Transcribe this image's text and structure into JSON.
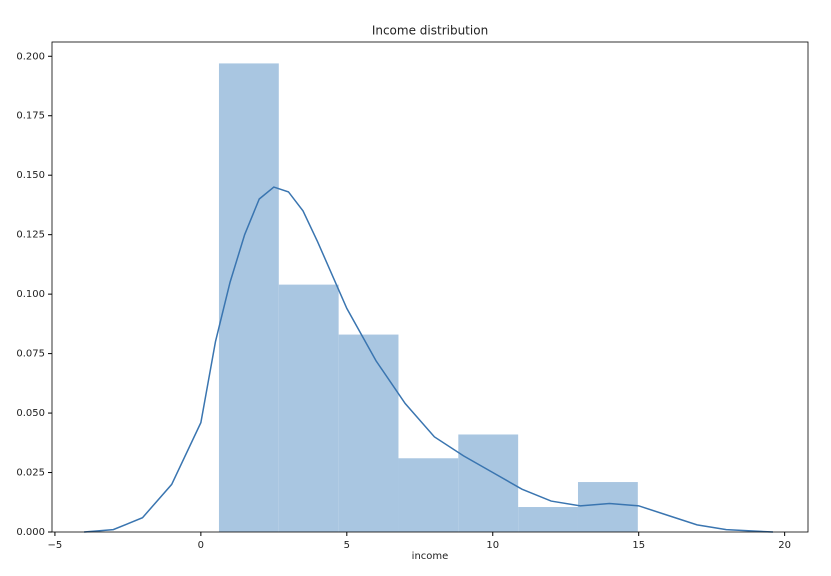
{
  "chart_data": {
    "type": "histogram",
    "title": "Income distribution",
    "x_label": "income",
    "bins": [
      0.62,
      2.67,
      4.72,
      6.77,
      8.82,
      10.87,
      12.92,
      14.97
    ],
    "values": [
      0.197,
      0.104,
      0.083,
      0.031,
      0.041,
      0.0105,
      0.021
    ],
    "color": "#a9c6e1",
    "kde": {
      "color": "#3a75b0",
      "x": [
        -4,
        -3,
        -2,
        -1,
        0,
        0.5,
        1,
        1.5,
        2,
        2.5,
        3,
        3.5,
        4,
        5,
        6,
        7,
        8,
        9,
        10,
        11,
        12,
        13,
        14,
        15,
        16,
        17,
        18,
        19.6
      ],
      "y": [
        0,
        0.001,
        0.006,
        0.02,
        0.046,
        0.08,
        0.105,
        0.125,
        0.14,
        0.145,
        0.143,
        0.135,
        0.122,
        0.094,
        0.072,
        0.054,
        0.04,
        0.032,
        0.025,
        0.018,
        0.013,
        0.011,
        0.012,
        0.011,
        0.007,
        0.003,
        0.001,
        0
      ]
    },
    "xlim": [
      -5.1,
      20.8
    ],
    "ylim": [
      0,
      0.206
    ],
    "xticks": [
      {
        "value": -5,
        "label": "−5"
      },
      0,
      5,
      10,
      15,
      20
    ],
    "yticks": [
      {
        "value": 0,
        "label": "0.000"
      },
      {
        "value": 0.025,
        "label": "0.025"
      },
      {
        "value": 0.05,
        "label": "0.050"
      },
      {
        "value": 0.075,
        "label": "0.075"
      },
      {
        "value": 0.1,
        "label": "0.100"
      },
      {
        "value": 0.125,
        "label": "0.125"
      },
      {
        "value": 0.15,
        "label": "0.150"
      },
      {
        "value": 0.175,
        "label": "0.175"
      },
      {
        "value": 0.2,
        "label": "0.200"
      }
    ]
  }
}
